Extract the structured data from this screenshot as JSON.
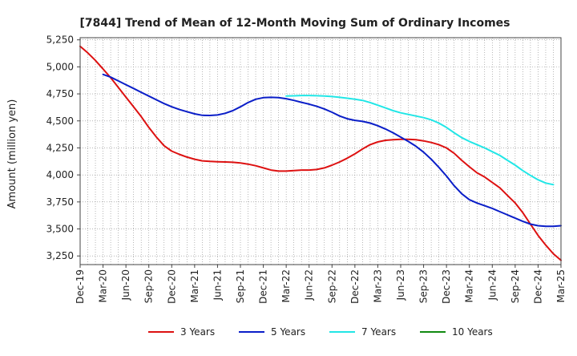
{
  "chart_data": {
    "type": "line",
    "title": "[7844]  Trend of Mean of 12-Month Moving Sum of Ordinary Incomes",
    "xlabel": "",
    "ylabel": "Amount (million yen)",
    "ylim": [
      3170,
      5270
    ],
    "y_ticks": [
      3250,
      3500,
      3750,
      4000,
      4250,
      4500,
      4750,
      5000,
      5250
    ],
    "y_tick_labels": [
      "3,250",
      "3,500",
      "3,750",
      "4,000",
      "4,250",
      "4,500",
      "4,750",
      "5,000",
      "5,250"
    ],
    "x_ticks": [
      "Dec-19",
      "Mar-20",
      "Jun-20",
      "Sep-20",
      "Dec-20",
      "Mar-21",
      "Jun-21",
      "Sep-21",
      "Dec-21",
      "Mar-22",
      "Jun-22",
      "Sep-22",
      "Dec-22",
      "Mar-23",
      "Jun-23",
      "Sep-23",
      "Dec-23",
      "Mar-24",
      "Jun-24",
      "Sep-24",
      "Dec-24",
      "Mar-25"
    ],
    "grid": true,
    "legend_position": "bottom",
    "series": [
      {
        "name": "3 Years",
        "color": "#dd1111",
        "points": [
          [
            0,
            5190
          ],
          [
            1,
            5130
          ],
          [
            2,
            5060
          ],
          [
            3,
            4980
          ],
          [
            4,
            4900
          ],
          [
            5,
            4810
          ],
          [
            6,
            4720
          ],
          [
            7,
            4630
          ],
          [
            8,
            4540
          ],
          [
            9,
            4440
          ],
          [
            10,
            4350
          ],
          [
            11,
            4270
          ],
          [
            12,
            4220
          ],
          [
            13,
            4190
          ],
          [
            14,
            4165
          ],
          [
            15,
            4145
          ],
          [
            16,
            4130
          ],
          [
            17,
            4125
          ],
          [
            18,
            4122
          ],
          [
            19,
            4120
          ],
          [
            20,
            4117
          ],
          [
            21,
            4110
          ],
          [
            22,
            4100
          ],
          [
            23,
            4085
          ],
          [
            24,
            4065
          ],
          [
            25,
            4045
          ],
          [
            26,
            4035
          ],
          [
            27,
            4035
          ],
          [
            28,
            4040
          ],
          [
            29,
            4045
          ],
          [
            30,
            4045
          ],
          [
            31,
            4050
          ],
          [
            32,
            4065
          ],
          [
            33,
            4090
          ],
          [
            34,
            4120
          ],
          [
            35,
            4155
          ],
          [
            36,
            4195
          ],
          [
            37,
            4240
          ],
          [
            38,
            4280
          ],
          [
            39,
            4305
          ],
          [
            40,
            4320
          ],
          [
            41,
            4325
          ],
          [
            42,
            4330
          ],
          [
            43,
            4330
          ],
          [
            44,
            4325
          ],
          [
            45,
            4315
          ],
          [
            46,
            4300
          ],
          [
            47,
            4280
          ],
          [
            48,
            4250
          ],
          [
            49,
            4200
          ],
          [
            50,
            4135
          ],
          [
            51,
            4075
          ],
          [
            52,
            4020
          ],
          [
            53,
            3980
          ],
          [
            54,
            3930
          ],
          [
            55,
            3880
          ],
          [
            56,
            3810
          ],
          [
            57,
            3740
          ],
          [
            58,
            3650
          ],
          [
            59,
            3545
          ],
          [
            60,
            3440
          ],
          [
            61,
            3350
          ],
          [
            62,
            3270
          ],
          [
            63,
            3210
          ]
        ]
      },
      {
        "name": "5 Years",
        "color": "#0a1ec8",
        "points": [
          [
            3,
            4930
          ],
          [
            4,
            4905
          ],
          [
            5,
            4870
          ],
          [
            6,
            4835
          ],
          [
            7,
            4800
          ],
          [
            8,
            4765
          ],
          [
            9,
            4730
          ],
          [
            10,
            4695
          ],
          [
            11,
            4660
          ],
          [
            12,
            4630
          ],
          [
            13,
            4605
          ],
          [
            14,
            4585
          ],
          [
            15,
            4565
          ],
          [
            16,
            4552
          ],
          [
            17,
            4550
          ],
          [
            18,
            4555
          ],
          [
            19,
            4570
          ],
          [
            20,
            4595
          ],
          [
            21,
            4630
          ],
          [
            22,
            4670
          ],
          [
            23,
            4700
          ],
          [
            24,
            4715
          ],
          [
            25,
            4718
          ],
          [
            26,
            4715
          ],
          [
            27,
            4705
          ],
          [
            28,
            4690
          ],
          [
            29,
            4672
          ],
          [
            30,
            4655
          ],
          [
            31,
            4635
          ],
          [
            32,
            4610
          ],
          [
            33,
            4580
          ],
          [
            34,
            4545
          ],
          [
            35,
            4520
          ],
          [
            36,
            4505
          ],
          [
            37,
            4495
          ],
          [
            38,
            4480
          ],
          [
            39,
            4455
          ],
          [
            40,
            4425
          ],
          [
            41,
            4390
          ],
          [
            42,
            4350
          ],
          [
            43,
            4310
          ],
          [
            44,
            4265
          ],
          [
            45,
            4210
          ],
          [
            46,
            4145
          ],
          [
            47,
            4070
          ],
          [
            48,
            3990
          ],
          [
            49,
            3900
          ],
          [
            50,
            3825
          ],
          [
            51,
            3770
          ],
          [
            52,
            3740
          ],
          [
            53,
            3715
          ],
          [
            54,
            3690
          ],
          [
            55,
            3660
          ],
          [
            56,
            3630
          ],
          [
            57,
            3600
          ],
          [
            58,
            3570
          ],
          [
            59,
            3545
          ],
          [
            60,
            3530
          ],
          [
            61,
            3525
          ],
          [
            62,
            3525
          ],
          [
            63,
            3530
          ]
        ]
      },
      {
        "name": "7 Years",
        "color": "#22e6e6",
        "points": [
          [
            27,
            4730
          ],
          [
            28,
            4732
          ],
          [
            29,
            4735
          ],
          [
            30,
            4735
          ],
          [
            31,
            4733
          ],
          [
            32,
            4730
          ],
          [
            33,
            4725
          ],
          [
            34,
            4718
          ],
          [
            35,
            4710
          ],
          [
            36,
            4700
          ],
          [
            37,
            4690
          ],
          [
            38,
            4670
          ],
          [
            39,
            4645
          ],
          [
            40,
            4620
          ],
          [
            41,
            4595
          ],
          [
            42,
            4575
          ],
          [
            43,
            4560
          ],
          [
            44,
            4545
          ],
          [
            45,
            4530
          ],
          [
            46,
            4510
          ],
          [
            47,
            4480
          ],
          [
            48,
            4440
          ],
          [
            49,
            4390
          ],
          [
            50,
            4345
          ],
          [
            51,
            4310
          ],
          [
            52,
            4280
          ],
          [
            53,
            4250
          ],
          [
            54,
            4215
          ],
          [
            55,
            4180
          ],
          [
            56,
            4135
          ],
          [
            57,
            4090
          ],
          [
            58,
            4040
          ],
          [
            59,
            3995
          ],
          [
            60,
            3955
          ],
          [
            61,
            3925
          ],
          [
            62,
            3910
          ]
        ]
      },
      {
        "name": "10 Years",
        "color": "#118a11",
        "points": []
      }
    ]
  }
}
